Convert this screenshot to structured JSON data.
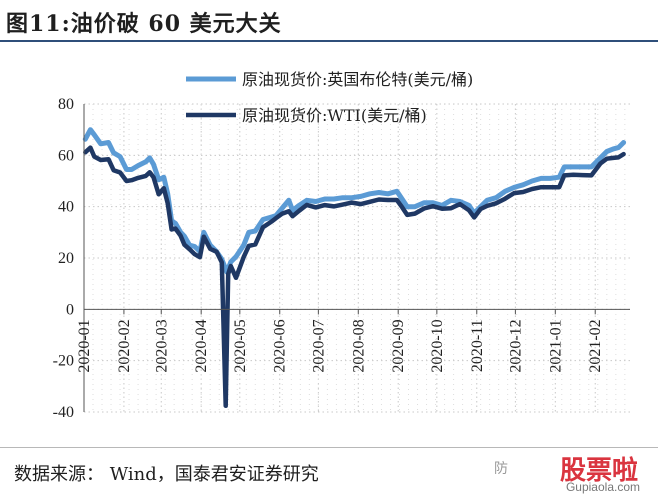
{
  "figure_title": "图11:油价破 60 美元大关",
  "source": "数据来源： Wind，国泰君安证券研究",
  "watermark": {
    "brand": "股票啦",
    "url": "Gupiaola.com",
    "note": "防"
  },
  "colors": {
    "brent": "#5b9bd5",
    "wti": "#1f3864",
    "grid": "#c8c8c8"
  },
  "chart_data": {
    "type": "line",
    "title": "",
    "xlabel": "",
    "ylabel": "",
    "ylim": [
      -40,
      80
    ],
    "yticks": [
      -40,
      -20,
      0,
      20,
      40,
      60,
      80
    ],
    "grid": true,
    "legend_position": "top",
    "x_tick_labels": [
      "2020-01",
      "2020-02",
      "2020-03",
      "2020-04",
      "2020-05",
      "2020-06",
      "2020-07",
      "2020-08",
      "2020-09",
      "2020-10",
      "2020-11",
      "2020-12",
      "2021-01",
      "2021-02"
    ],
    "x_start": "2020-01-01",
    "x_end": "2021-02-28",
    "series": [
      {
        "name": "原油现货价:英国布伦特(美元/桶)",
        "color": "#5b9bd5",
        "points": [
          [
            "2020-01-02",
            66.3
          ],
          [
            "2020-01-06",
            70.0
          ],
          [
            "2020-01-09",
            68.0
          ],
          [
            "2020-01-14",
            64.5
          ],
          [
            "2020-01-20",
            65.0
          ],
          [
            "2020-01-24",
            61.0
          ],
          [
            "2020-01-29",
            59.5
          ],
          [
            "2020-02-03",
            54.5
          ],
          [
            "2020-02-07",
            54.5
          ],
          [
            "2020-02-12",
            56.0
          ],
          [
            "2020-02-18",
            57.5
          ],
          [
            "2020-02-21",
            59.0
          ],
          [
            "2020-02-24",
            56.5
          ],
          [
            "2020-02-28",
            50.5
          ],
          [
            "2020-03-03",
            51.5
          ],
          [
            "2020-03-06",
            45.0
          ],
          [
            "2020-03-09",
            34.5
          ],
          [
            "2020-03-12",
            33.5
          ],
          [
            "2020-03-16",
            30.0
          ],
          [
            "2020-03-19",
            28.5
          ],
          [
            "2020-03-23",
            25.0
          ],
          [
            "2020-03-27",
            24.5
          ],
          [
            "2020-03-31",
            22.5
          ],
          [
            "2020-04-03",
            30.0
          ],
          [
            "2020-04-08",
            25.0
          ],
          [
            "2020-04-13",
            22.5
          ],
          [
            "2020-04-17",
            19.5
          ],
          [
            "2020-04-21",
            14.5
          ],
          [
            "2020-04-24",
            18.5
          ],
          [
            "2020-04-28",
            20.5
          ],
          [
            "2020-05-04",
            25.0
          ],
          [
            "2020-05-08",
            30.0
          ],
          [
            "2020-05-13",
            30.5
          ],
          [
            "2020-05-19",
            35.0
          ],
          [
            "2020-05-26",
            36.0
          ],
          [
            "2020-05-29",
            36.5
          ],
          [
            "2020-06-03",
            39.5
          ],
          [
            "2020-06-08",
            42.5
          ],
          [
            "2020-06-11",
            38.5
          ],
          [
            "2020-06-16",
            40.5
          ],
          [
            "2020-06-22",
            42.5
          ],
          [
            "2020-06-29",
            42.0
          ],
          [
            "2020-07-06",
            43.0
          ],
          [
            "2020-07-13",
            43.0
          ],
          [
            "2020-07-20",
            43.5
          ],
          [
            "2020-07-27",
            43.5
          ],
          [
            "2020-08-03",
            44.0
          ],
          [
            "2020-08-10",
            45.0
          ],
          [
            "2020-08-17",
            45.5
          ],
          [
            "2020-08-24",
            45.0
          ],
          [
            "2020-08-31",
            46.0
          ],
          [
            "2020-09-04",
            43.0
          ],
          [
            "2020-09-08",
            40.0
          ],
          [
            "2020-09-14",
            40.0
          ],
          [
            "2020-09-21",
            41.5
          ],
          [
            "2020-09-28",
            41.5
          ],
          [
            "2020-10-05",
            40.5
          ],
          [
            "2020-10-12",
            42.5
          ],
          [
            "2020-10-19",
            42.0
          ],
          [
            "2020-10-26",
            40.5
          ],
          [
            "2020-10-30",
            37.5
          ],
          [
            "2020-11-04",
            40.0
          ],
          [
            "2020-11-09",
            42.5
          ],
          [
            "2020-11-16",
            43.5
          ],
          [
            "2020-11-23",
            46.0
          ],
          [
            "2020-11-30",
            47.5
          ],
          [
            "2020-12-07",
            48.5
          ],
          [
            "2020-12-14",
            50.0
          ],
          [
            "2020-12-21",
            51.0
          ],
          [
            "2020-12-28",
            51.0
          ],
          [
            "2021-01-04",
            51.5
          ],
          [
            "2021-01-08",
            55.5
          ],
          [
            "2021-01-15",
            55.5
          ],
          [
            "2021-01-22",
            55.5
          ],
          [
            "2021-01-29",
            55.5
          ],
          [
            "2021-02-05",
            59.0
          ],
          [
            "2021-02-10",
            61.5
          ],
          [
            "2021-02-15",
            62.5
          ],
          [
            "2021-02-19",
            63.0
          ],
          [
            "2021-02-23",
            65.0
          ]
        ]
      },
      {
        "name": "原油现货价:WTI(美元/桶)",
        "color": "#1f3864",
        "points": [
          [
            "2020-01-02",
            61.2
          ],
          [
            "2020-01-06",
            63.0
          ],
          [
            "2020-01-09",
            59.5
          ],
          [
            "2020-01-14",
            58.2
          ],
          [
            "2020-01-20",
            58.5
          ],
          [
            "2020-01-24",
            54.2
          ],
          [
            "2020-01-29",
            53.3
          ],
          [
            "2020-02-03",
            50.0
          ],
          [
            "2020-02-07",
            50.3
          ],
          [
            "2020-02-12",
            51.2
          ],
          [
            "2020-02-18",
            52.0
          ],
          [
            "2020-02-21",
            53.4
          ],
          [
            "2020-02-24",
            51.5
          ],
          [
            "2020-02-28",
            44.8
          ],
          [
            "2020-03-03",
            47.2
          ],
          [
            "2020-03-06",
            41.3
          ],
          [
            "2020-03-09",
            31.1
          ],
          [
            "2020-03-12",
            31.5
          ],
          [
            "2020-03-16",
            28.7
          ],
          [
            "2020-03-19",
            25.2
          ],
          [
            "2020-03-23",
            23.4
          ],
          [
            "2020-03-27",
            21.5
          ],
          [
            "2020-03-31",
            20.3
          ],
          [
            "2020-04-03",
            28.3
          ],
          [
            "2020-04-08",
            23.6
          ],
          [
            "2020-04-13",
            22.4
          ],
          [
            "2020-04-17",
            18.3
          ],
          [
            "2020-04-20",
            -37.6
          ],
          [
            "2020-04-22",
            13.8
          ],
          [
            "2020-04-24",
            16.9
          ],
          [
            "2020-04-28",
            12.3
          ],
          [
            "2020-05-04",
            20.4
          ],
          [
            "2020-05-08",
            24.7
          ],
          [
            "2020-05-13",
            25.3
          ],
          [
            "2020-05-19",
            32.0
          ],
          [
            "2020-05-26",
            34.3
          ],
          [
            "2020-05-29",
            35.5
          ],
          [
            "2020-06-03",
            37.3
          ],
          [
            "2020-06-08",
            38.2
          ],
          [
            "2020-06-11",
            36.3
          ],
          [
            "2020-06-16",
            38.4
          ],
          [
            "2020-06-22",
            40.7
          ],
          [
            "2020-06-29",
            39.7
          ],
          [
            "2020-07-06",
            40.6
          ],
          [
            "2020-07-13",
            40.1
          ],
          [
            "2020-07-20",
            40.8
          ],
          [
            "2020-07-27",
            41.6
          ],
          [
            "2020-08-03",
            41.0
          ],
          [
            "2020-08-10",
            41.9
          ],
          [
            "2020-08-17",
            42.8
          ],
          [
            "2020-08-24",
            42.6
          ],
          [
            "2020-08-31",
            42.6
          ],
          [
            "2020-09-04",
            39.8
          ],
          [
            "2020-09-08",
            36.8
          ],
          [
            "2020-09-14",
            37.3
          ],
          [
            "2020-09-21",
            39.3
          ],
          [
            "2020-09-28",
            40.2
          ],
          [
            "2020-10-05",
            39.2
          ],
          [
            "2020-10-12",
            39.4
          ],
          [
            "2020-10-19",
            41.0
          ],
          [
            "2020-10-26",
            38.6
          ],
          [
            "2020-10-30",
            35.8
          ],
          [
            "2020-11-04",
            39.1
          ],
          [
            "2020-11-09",
            40.3
          ],
          [
            "2020-11-16",
            41.3
          ],
          [
            "2020-11-23",
            43.1
          ],
          [
            "2020-11-30",
            45.3
          ],
          [
            "2020-12-07",
            45.7
          ],
          [
            "2020-12-14",
            46.9
          ],
          [
            "2020-12-21",
            47.6
          ],
          [
            "2020-12-28",
            47.6
          ],
          [
            "2021-01-04",
            47.6
          ],
          [
            "2021-01-08",
            52.2
          ],
          [
            "2021-01-15",
            52.4
          ],
          [
            "2021-01-22",
            52.3
          ],
          [
            "2021-01-29",
            52.2
          ],
          [
            "2021-02-05",
            56.8
          ],
          [
            "2021-02-10",
            58.7
          ],
          [
            "2021-02-15",
            59.0
          ],
          [
            "2021-02-19",
            59.2
          ],
          [
            "2021-02-23",
            60.5
          ]
        ]
      }
    ]
  }
}
